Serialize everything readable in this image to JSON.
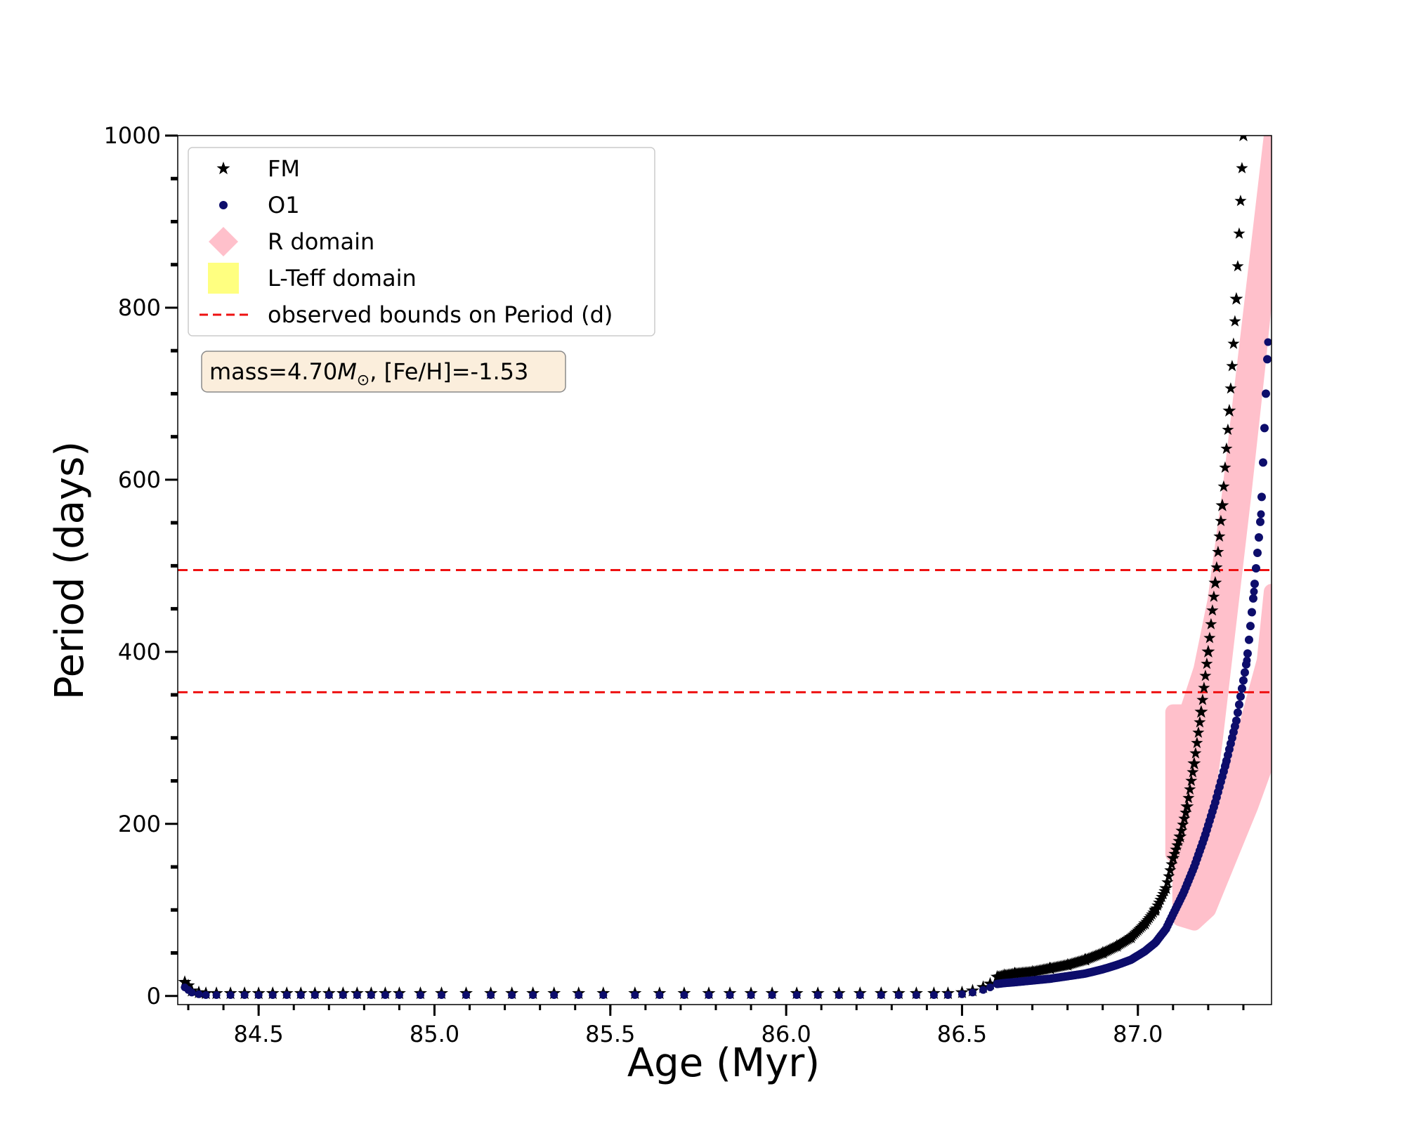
{
  "chart_data": {
    "type": "scatter",
    "xlabel": "Age (Myr)",
    "ylabel": "Period (days)",
    "xlim": [
      84.27,
      87.38
    ],
    "ylim": [
      -10,
      1000
    ],
    "x_ticks": [
      84.5,
      85.0,
      85.5,
      86.0,
      86.5,
      87.0
    ],
    "x_tick_labels": [
      "84.5",
      "85.0",
      "85.5",
      "86.0",
      "86.5",
      "87.0"
    ],
    "x_minor_step": 0.1,
    "y_ticks": [
      0,
      200,
      400,
      600,
      800,
      1000
    ],
    "y_tick_labels": [
      "0",
      "200",
      "400",
      "600",
      "800",
      "1000"
    ],
    "y_minor_step": 50,
    "grid": false,
    "legend_placement": "top-left",
    "legend": [
      {
        "label": "FM",
        "marker": "star",
        "color": "#000000"
      },
      {
        "label": "O1",
        "marker": "circle",
        "color": "#0d0d6b"
      },
      {
        "label": "R domain",
        "marker": "diamond",
        "color": "#ffc0cb"
      },
      {
        "label": "L-Teff domain",
        "marker": "square",
        "color": "#ffff80"
      },
      {
        "label": "observed bounds on Period (d)",
        "marker": "dashed-line",
        "color": "#ee1111"
      }
    ],
    "annotation": {
      "prefix": "mass=4.70",
      "symbol": "M",
      "subscript": "⊙",
      "suffix": ", [Fe/H]=-1.53"
    },
    "hlines": [
      {
        "y": 495,
        "color": "#ee1111",
        "style": "dashed"
      },
      {
        "y": 353,
        "color": "#ee1111",
        "style": "dashed"
      }
    ],
    "series": [
      {
        "name": "FM",
        "marker": "star",
        "color": "#000000",
        "x": [
          84.29,
          84.3,
          84.31,
          84.33,
          84.35,
          84.38,
          84.42,
          84.46,
          84.5,
          84.54,
          84.58,
          84.62,
          84.66,
          84.7,
          84.74,
          84.78,
          84.82,
          84.86,
          84.9,
          84.96,
          85.02,
          85.09,
          85.16,
          85.22,
          85.28,
          85.34,
          85.41,
          85.48,
          85.57,
          85.64,
          85.71,
          85.78,
          85.84,
          85.9,
          85.96,
          86.03,
          86.09,
          86.15,
          86.21,
          86.27,
          86.32,
          86.37,
          86.42,
          86.46,
          86.5,
          86.53,
          86.56,
          86.58,
          86.6,
          86.62,
          86.65,
          86.7,
          86.75,
          86.8,
          86.85,
          86.9,
          86.94,
          86.98,
          87.02,
          87.05,
          87.08,
          87.1,
          87.12,
          87.14,
          87.16,
          87.18,
          87.2,
          87.22,
          87.24,
          87.26,
          87.28,
          87.3
        ],
        "y": [
          16,
          12,
          6,
          4,
          3,
          3,
          3,
          3,
          3,
          3,
          3,
          3,
          3,
          3,
          3,
          3,
          3,
          3,
          3,
          3,
          3,
          3,
          3,
          3,
          3,
          3,
          3,
          3,
          3,
          3,
          3,
          3,
          3,
          3,
          3,
          3,
          3,
          3,
          3,
          3,
          3,
          3,
          3,
          3,
          4,
          6,
          10,
          14,
          22,
          24,
          26,
          28,
          32,
          36,
          42,
          50,
          58,
          68,
          84,
          100,
          125,
          160,
          185,
          220,
          270,
          330,
          400,
          480,
          570,
          680,
          810,
          1000
        ]
      },
      {
        "name": "O1",
        "marker": "circle",
        "color": "#0d0d6b",
        "x": [
          84.29,
          84.3,
          84.31,
          84.33,
          84.35,
          84.38,
          84.42,
          84.46,
          84.5,
          84.54,
          84.58,
          84.62,
          84.66,
          84.7,
          84.74,
          84.78,
          84.82,
          84.86,
          84.9,
          84.96,
          85.02,
          85.09,
          85.16,
          85.22,
          85.28,
          85.34,
          85.41,
          85.48,
          85.57,
          85.64,
          85.71,
          85.78,
          85.84,
          85.9,
          85.96,
          86.03,
          86.09,
          86.15,
          86.21,
          86.27,
          86.32,
          86.37,
          86.42,
          86.46,
          86.5,
          86.53,
          86.56,
          86.58,
          86.6,
          86.62,
          86.65,
          86.7,
          86.75,
          86.8,
          86.85,
          86.9,
          86.94,
          86.98,
          87.02,
          87.05,
          87.08,
          87.1,
          87.13,
          87.16,
          87.19,
          87.22,
          87.25,
          87.28,
          87.31,
          87.33,
          87.35,
          87.37
        ],
        "y": [
          10,
          7,
          4,
          2,
          1,
          1,
          1,
          1,
          1,
          1,
          1,
          1,
          1,
          1,
          1,
          1,
          1,
          1,
          1,
          1,
          1,
          1,
          1,
          1,
          1,
          1,
          1,
          1,
          1,
          1,
          1,
          1,
          1,
          1,
          1,
          1,
          1,
          1,
          1,
          1,
          1,
          1,
          1,
          1,
          2,
          4,
          7,
          10,
          14,
          15,
          16,
          18,
          20,
          23,
          26,
          31,
          36,
          42,
          52,
          62,
          78,
          95,
          120,
          150,
          185,
          225,
          270,
          320,
          390,
          470,
          560,
          760
        ]
      }
    ],
    "r_domain_bands": [
      {
        "x": [
          87.1,
          87.14,
          87.18,
          87.22,
          87.26,
          87.3,
          87.34,
          87.38
        ],
        "low": [
          165,
          160,
          170,
          300,
          440,
          580,
          730,
          890
        ],
        "high": [
          330,
          330,
          380,
          460,
          580,
          720,
          860,
          1000
        ]
      },
      {
        "x": [
          87.12,
          87.16,
          87.2,
          87.24,
          87.28,
          87.32,
          87.36,
          87.38
        ],
        "low": [
          90,
          85,
          100,
          140,
          180,
          220,
          265,
          290
        ],
        "high": [
          180,
          150,
          165,
          220,
          270,
          330,
          390,
          470
        ]
      }
    ]
  }
}
